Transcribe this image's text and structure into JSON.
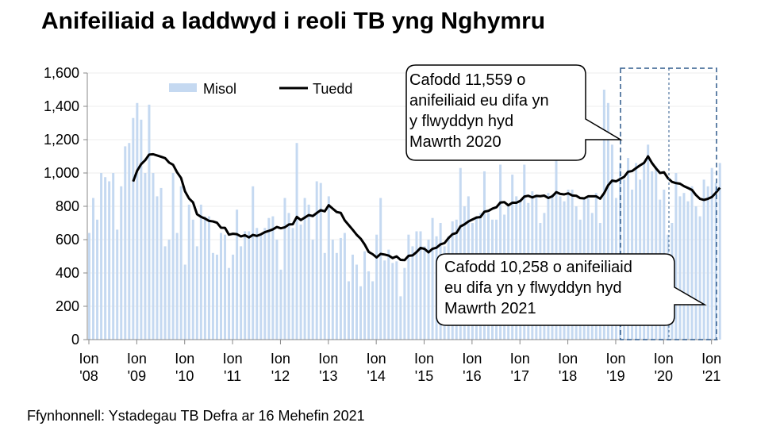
{
  "title": "Anifeiliaid a laddwyd i reoli TB yng Nghymru",
  "source": "Ffynhonnell: Ystadegau TB Defra ar 16 Mehefin 2021",
  "callouts": {
    "top": [
      "Cafodd 11,559 o",
      "anifeiliaid eu difa yn",
      "y flwyddyn hyd",
      "Mawrth 2020"
    ],
    "bottom": [
      "Cafodd 10,258 o anifeiliaid",
      "eu difa yn y flwyddyn hyd",
      "Mawrth 2021"
    ]
  },
  "chart_data": {
    "type": "bar+line",
    "title": "Anifeiliaid a laddwyd i reoli TB yng Nghymru",
    "xlabel": "",
    "ylabel": "",
    "ylim": [
      0,
      1600
    ],
    "yticks": [
      "0",
      "200",
      "400",
      "600",
      "800",
      "1,000",
      "1,200",
      "1,400",
      "1,600"
    ],
    "yticks_values": [
      0,
      200,
      400,
      600,
      800,
      1000,
      1200,
      1400,
      1600
    ],
    "xticks": [
      [
        "Ion",
        "'08"
      ],
      [
        "Ion",
        "'09"
      ],
      [
        "Ion",
        "'10"
      ],
      [
        "Ion",
        "'11"
      ],
      [
        "Ion",
        "'12"
      ],
      [
        "Ion",
        "'13"
      ],
      [
        "Ion",
        "'14"
      ],
      [
        "Ion",
        "'15"
      ],
      [
        "Ion",
        "'16"
      ],
      [
        "Ion",
        "'17"
      ],
      [
        "Ion",
        "'18"
      ],
      [
        "Ion",
        "'19"
      ],
      [
        "Ion",
        "'20"
      ],
      [
        "Ion",
        "'21"
      ]
    ],
    "x_start": "Ion 2008",
    "x_end": "Mawrth 2021",
    "legend": {
      "position": "top",
      "bar": "Misol",
      "line": "Tuedd"
    },
    "colors": {
      "bar": "#c5d9f1",
      "line": "#000000",
      "box": "#2e5a8c"
    },
    "series": [
      {
        "name": "Misol",
        "type": "bar",
        "values": [
          640,
          850,
          720,
          1000,
          975,
          950,
          1000,
          660,
          920,
          1160,
          1180,
          1330,
          1420,
          1320,
          1000,
          1410,
          1000,
          860,
          910,
          560,
          600,
          1000,
          640,
          920,
          450,
          810,
          720,
          560,
          810,
          740,
          740,
          520,
          510,
          640,
          630,
          430,
          510,
          780,
          560,
          650,
          650,
          920,
          670,
          630,
          670,
          730,
          740,
          600,
          420,
          850,
          760,
          670,
          1180,
          690,
          850,
          810,
          600,
          950,
          940,
          520,
          860,
          600,
          520,
          610,
          640,
          350,
          510,
          450,
          320,
          530,
          410,
          350,
          630,
          850,
          475,
          540,
          460,
          470,
          260,
          430,
          630,
          560,
          650,
          650,
          560,
          600,
          730,
          620,
          700,
          560,
          620,
          710,
          720,
          1030,
          800,
          860,
          700,
          740,
          760,
          1010,
          760,
          720,
          720,
          1050,
          750,
          800,
          990,
          860,
          830,
          1050,
          820,
          890,
          870,
          700,
          760,
          880,
          870,
          1100,
          860,
          830,
          900,
          900,
          800,
          720,
          850,
          850,
          760,
          880,
          700,
          1500,
          1420,
          1170,
          850,
          1060,
          960,
          1090,
          900,
          1060,
          960,
          1060,
          1170,
          1010,
          1040,
          840,
          900,
          630,
          700,
          1000,
          860,
          880,
          830,
          920,
          800,
          740,
          960,
          920,
          1030,
          940,
          1060
        ]
      },
      {
        "name": "Tuedd",
        "type": "line",
        "window_months": 12
      }
    ]
  }
}
